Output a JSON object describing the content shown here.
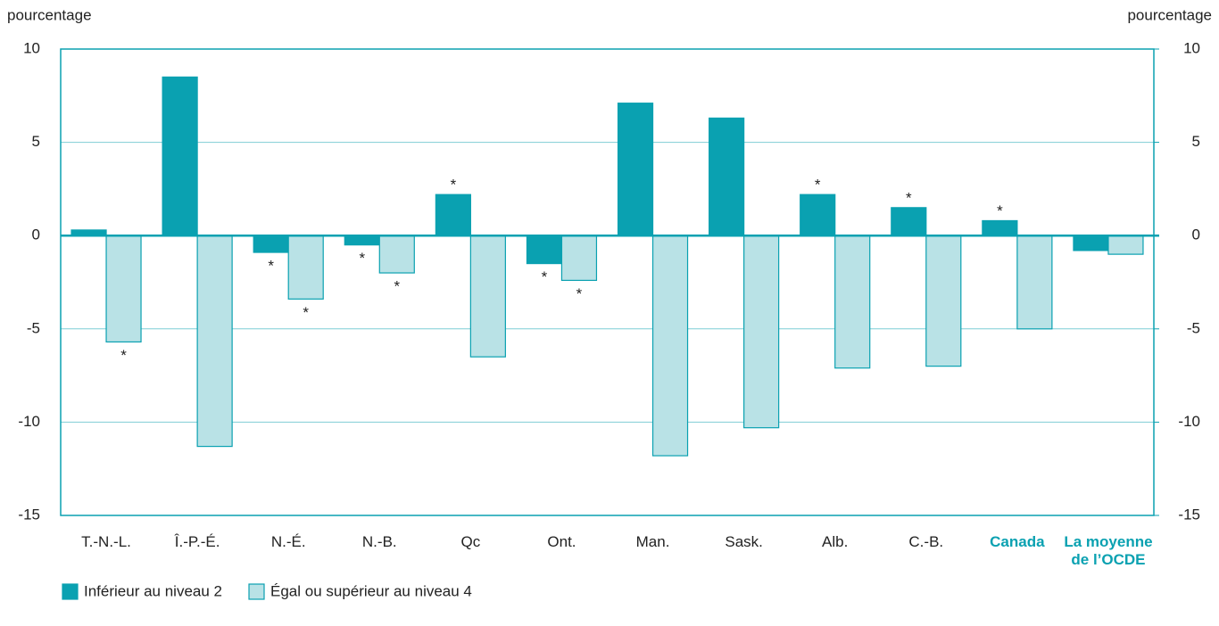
{
  "chart_data": {
    "type": "bar",
    "ylabel": "pourcentage",
    "y2label": "pourcentage",
    "categories": [
      "T.-N.-L.",
      "Î.-P.-É.",
      "N.-É.",
      "N.-B.",
      "Qc",
      "Ont.",
      "Man.",
      "Sask.",
      "Alb.",
      "C.-B.",
      "Canada",
      "La moyenne de l’OCDE"
    ],
    "highlight": [
      10,
      11
    ],
    "series": [
      {
        "name": "Inférieur au niveau 2",
        "color": "#0aa1b1",
        "values": [
          0.3,
          8.5,
          -0.9,
          -0.5,
          2.2,
          -1.5,
          7.1,
          6.3,
          2.2,
          1.5,
          0.8,
          -0.8
        ],
        "annotations": [
          null,
          null,
          "*",
          "*",
          "*",
          "*",
          null,
          null,
          "*",
          "*",
          "*",
          null
        ]
      },
      {
        "name": "Égal ou supérieur au niveau 4",
        "color": "#b9e2e6",
        "values": [
          -5.7,
          -11.3,
          -3.4,
          -2.0,
          -6.5,
          -2.4,
          -11.8,
          -10.3,
          -7.1,
          -7.0,
          -5.0,
          -1.0
        ],
        "annotations": [
          "*",
          null,
          "*",
          "*",
          null,
          "*",
          null,
          null,
          null,
          null,
          null,
          null
        ]
      }
    ],
    "ylim": [
      -15,
      10
    ],
    "yticks": [
      -15,
      -10,
      -5,
      0,
      5,
      10
    ],
    "y2lim": [
      -15,
      10
    ],
    "y2ticks": [
      -15,
      -10,
      -5,
      0,
      5,
      10
    ],
    "grid": true,
    "legend": "bottom-left"
  }
}
